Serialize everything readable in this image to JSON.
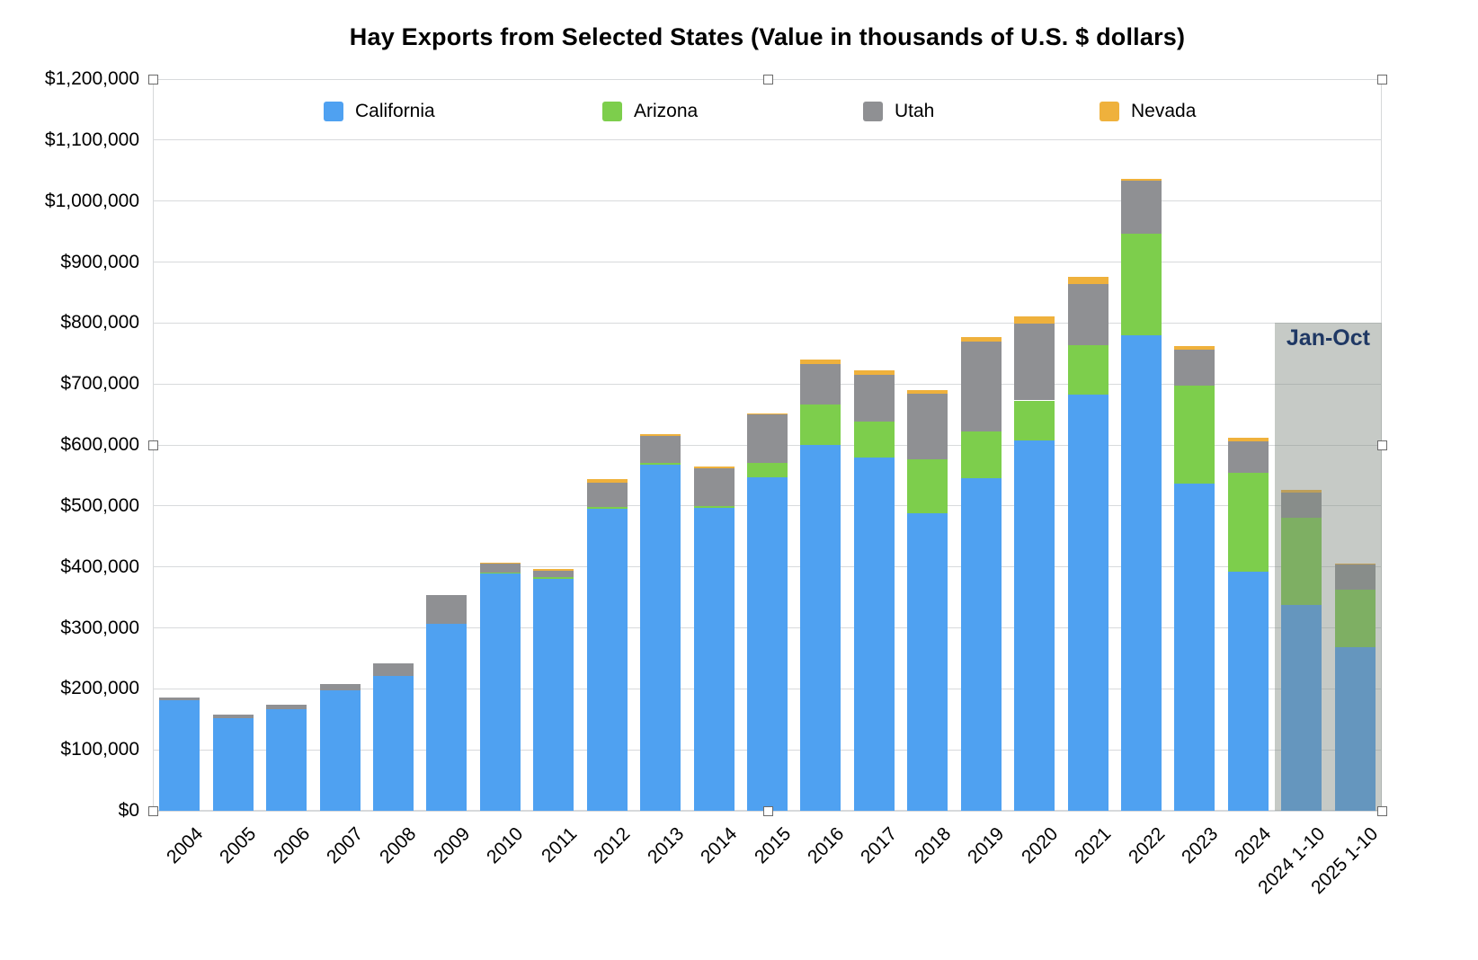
{
  "chart_data": {
    "type": "bar",
    "stacked": true,
    "title": "Hay Exports from Selected States (Value in thousands of U.S. $ dollars)",
    "categories": [
      "2004",
      "2005",
      "2006",
      "2007",
      "2008",
      "2009",
      "2010",
      "2011",
      "2012",
      "2013",
      "2014",
      "2015",
      "2016",
      "2017",
      "2018",
      "2019",
      "2020",
      "2021",
      "2022",
      "2023",
      "2024",
      "2024 1-10",
      "2025 1-10"
    ],
    "series": [
      {
        "name": "California",
        "color": "#4fa1f1",
        "values": [
          181000,
          152000,
          167000,
          198000,
          221000,
          307000,
          389000,
          380000,
          496000,
          567000,
          497000,
          547000,
          600000,
          580000,
          488000,
          545000,
          607000,
          683000,
          780000,
          537000,
          392000,
          338000,
          268000
        ]
      },
      {
        "name": "Arizona",
        "color": "#7dce4c",
        "values": [
          0,
          0,
          0,
          0,
          0,
          0,
          2000,
          3000,
          2000,
          3000,
          3000,
          24000,
          67000,
          58000,
          88000,
          77000,
          66000,
          80000,
          167000,
          160000,
          162000,
          142000,
          95000
        ]
      },
      {
        "name": "Utah",
        "color": "#8f9093",
        "values": [
          5000,
          6000,
          7000,
          10000,
          21000,
          47000,
          14000,
          10000,
          40000,
          45000,
          62000,
          79000,
          65000,
          77000,
          108000,
          147000,
          126000,
          101000,
          86000,
          59000,
          52000,
          42000,
          41000
        ]
      },
      {
        "name": "Nevada",
        "color": "#efb13c",
        "values": [
          0,
          0,
          0,
          0,
          0,
          0,
          2000,
          4000,
          6000,
          2000,
          3000,
          2000,
          8000,
          8000,
          6000,
          8000,
          12000,
          12000,
          4000,
          6000,
          6000,
          5000,
          2000
        ]
      }
    ],
    "ylim": [
      0,
      1200000
    ],
    "ytick_interval": 100000,
    "ytick_labels": [
      "$0",
      "$100,000",
      "$200,000",
      "$300,000",
      "$400,000",
      "$500,000",
      "$600,000",
      "$700,000",
      "$800,000",
      "$900,000",
      "$1,000,000",
      "$1,100,000",
      "$1,200,000"
    ],
    "xlabel": "",
    "ylabel": "",
    "grid": true,
    "legend_position": "top",
    "annotation": {
      "label": "Jan-Oct",
      "covers": [
        "2024 1-10",
        "2025 1-10"
      ],
      "top_value": 800000,
      "color": "#1f3864"
    }
  }
}
